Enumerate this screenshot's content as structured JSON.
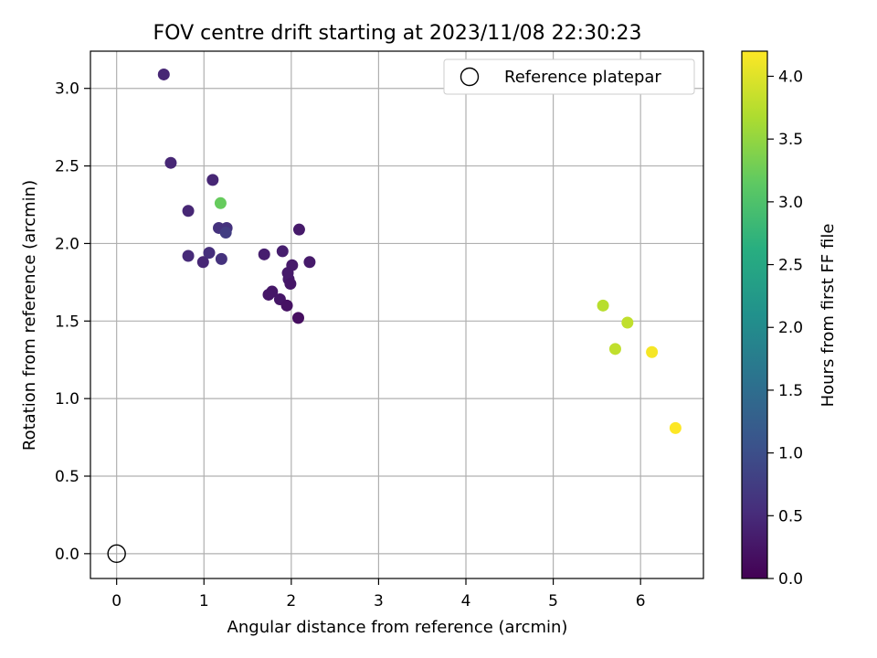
{
  "chart_data": {
    "type": "scatter",
    "title": "FOV centre drift starting at 2023/11/08 22:30:23",
    "xlabel": "Angular distance from reference (arcmin)",
    "ylabel": "Rotation from reference (arcmin)",
    "xlim": [
      -0.3,
      6.72
    ],
    "ylim": [
      -0.16,
      3.24
    ],
    "x_ticks": [
      0,
      1,
      2,
      3,
      4,
      5,
      6
    ],
    "x_tick_labels": [
      "0",
      "1",
      "2",
      "3",
      "4",
      "5",
      "6"
    ],
    "y_ticks": [
      0.0,
      0.5,
      1.0,
      1.5,
      2.0,
      2.5,
      3.0
    ],
    "y_tick_labels": [
      "0.0",
      "0.5",
      "1.0",
      "1.5",
      "2.0",
      "2.5",
      "3.0"
    ],
    "grid": true,
    "legend": {
      "placement": "top-right",
      "entries": [
        {
          "label": "Reference platepar",
          "marker": "open-circle",
          "x": 0,
          "y": 0
        }
      ]
    },
    "colorbar": {
      "label": "Hours from first FF file",
      "colormap": "viridis",
      "range": [
        0.0,
        4.2
      ],
      "ticks": [
        0.0,
        0.5,
        1.0,
        1.5,
        2.0,
        2.5,
        3.0,
        3.5,
        4.0
      ],
      "tick_labels": [
        "0.0",
        "0.5",
        "1.0",
        "1.5",
        "2.0",
        "2.5",
        "3.0",
        "3.5",
        "4.0"
      ]
    },
    "series": [
      {
        "points": [
          {
            "x": 0.54,
            "y": 3.09,
            "hours": 0.45
          },
          {
            "x": 0.62,
            "y": 2.52,
            "hours": 0.45
          },
          {
            "x": 1.1,
            "y": 2.41,
            "hours": 0.45
          },
          {
            "x": 0.82,
            "y": 2.21,
            "hours": 0.45
          },
          {
            "x": 1.19,
            "y": 2.26,
            "hours": 3.2
          },
          {
            "x": 1.17,
            "y": 2.1,
            "hours": 0.6
          },
          {
            "x": 1.26,
            "y": 2.1,
            "hours": 0.6
          },
          {
            "x": 1.25,
            "y": 2.07,
            "hours": 0.75
          },
          {
            "x": 0.82,
            "y": 1.92,
            "hours": 0.5
          },
          {
            "x": 0.99,
            "y": 1.88,
            "hours": 0.45
          },
          {
            "x": 1.06,
            "y": 1.94,
            "hours": 0.55
          },
          {
            "x": 1.2,
            "y": 1.9,
            "hours": 0.6
          },
          {
            "x": 1.69,
            "y": 1.93,
            "hours": 0.35
          },
          {
            "x": 1.9,
            "y": 1.95,
            "hours": 0.35
          },
          {
            "x": 2.09,
            "y": 2.09,
            "hours": 0.3
          },
          {
            "x": 2.21,
            "y": 1.88,
            "hours": 0.3
          },
          {
            "x": 2.01,
            "y": 1.86,
            "hours": 0.3
          },
          {
            "x": 1.96,
            "y": 1.81,
            "hours": 0.3
          },
          {
            "x": 1.97,
            "y": 1.77,
            "hours": 0.3
          },
          {
            "x": 1.99,
            "y": 1.74,
            "hours": 0.25
          },
          {
            "x": 1.78,
            "y": 1.69,
            "hours": 0.25
          },
          {
            "x": 1.74,
            "y": 1.67,
            "hours": 0.25
          },
          {
            "x": 1.87,
            "y": 1.64,
            "hours": 0.25
          },
          {
            "x": 1.95,
            "y": 1.6,
            "hours": 0.2
          },
          {
            "x": 2.08,
            "y": 1.52,
            "hours": 0.15
          },
          {
            "x": 5.57,
            "y": 1.6,
            "hours": 3.75
          },
          {
            "x": 5.85,
            "y": 1.49,
            "hours": 3.8
          },
          {
            "x": 5.71,
            "y": 1.32,
            "hours": 3.8
          },
          {
            "x": 6.13,
            "y": 1.3,
            "hours": 4.15
          },
          {
            "x": 6.4,
            "y": 0.81,
            "hours": 4.2
          }
        ]
      }
    ]
  }
}
